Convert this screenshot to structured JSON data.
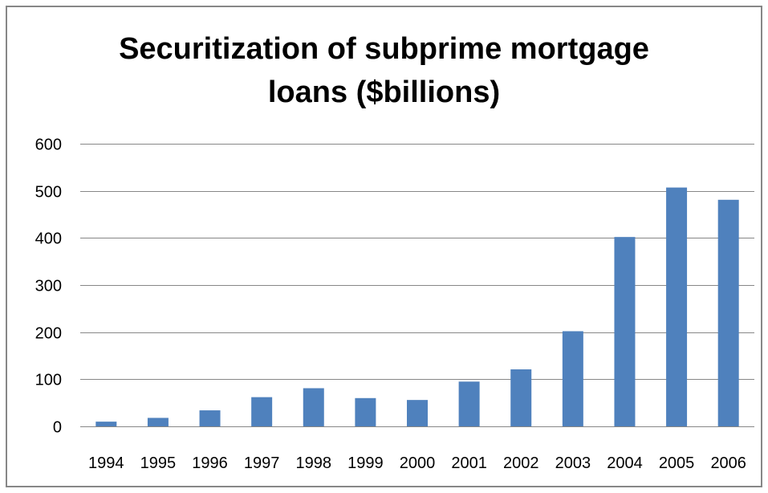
{
  "chart_data": {
    "type": "bar",
    "title": "Securitization of subprime mortgage\nloans ($billions)",
    "xlabel": "",
    "ylabel": "",
    "categories": [
      "1994",
      "1995",
      "1996",
      "1997",
      "1998",
      "1999",
      "2000",
      "2001",
      "2002",
      "2003",
      "2004",
      "2005",
      "2006"
    ],
    "values": [
      10,
      18,
      34,
      62,
      81,
      60,
      56,
      95,
      121,
      202,
      402,
      507,
      481
    ],
    "ylim": [
      0,
      600
    ],
    "yticks": [
      "0",
      "100",
      "200",
      "300",
      "400",
      "500",
      "600"
    ],
    "grid": true,
    "legend": "none",
    "bar_color": "#4f81bd",
    "grid_color": "#878787"
  }
}
